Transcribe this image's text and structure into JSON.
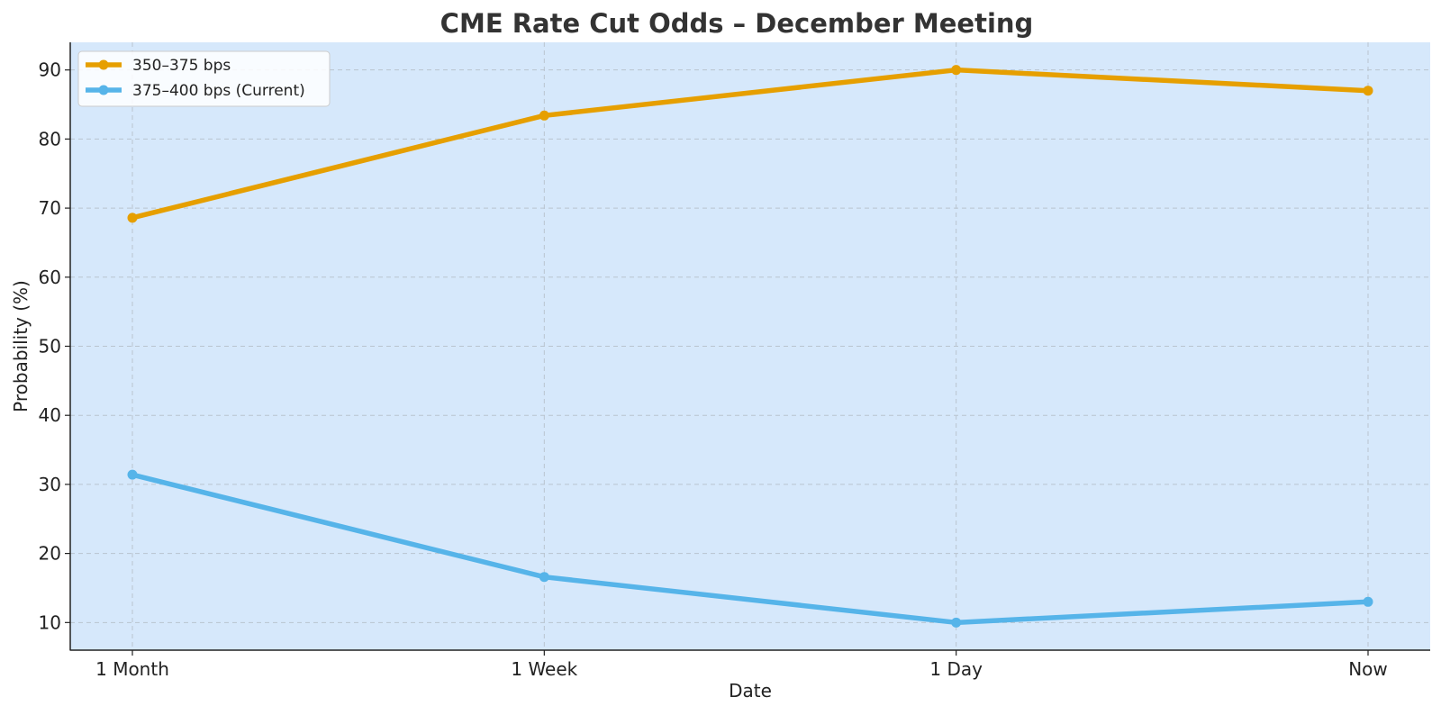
{
  "chart_data": {
    "type": "line",
    "title": "CME Rate Cut Odds – December Meeting",
    "xlabel": "Date",
    "ylabel": "Probability (%)",
    "categories": [
      "1 Month",
      "1 Week",
      "1 Day",
      "Now"
    ],
    "yticks": [
      10,
      20,
      30,
      40,
      50,
      60,
      70,
      80,
      90
    ],
    "ylim": [
      6,
      94
    ],
    "grid": true,
    "legend_position": "top-left",
    "background_color": "#d6e8fb",
    "series": [
      {
        "name": "350–375 bps",
        "color": "#e69f00",
        "values": [
          68.6,
          83.4,
          90.0,
          87.0
        ]
      },
      {
        "name": "375–400 bps (Current)",
        "color": "#56b4e9",
        "values": [
          31.4,
          16.6,
          10.0,
          13.0
        ]
      }
    ]
  }
}
